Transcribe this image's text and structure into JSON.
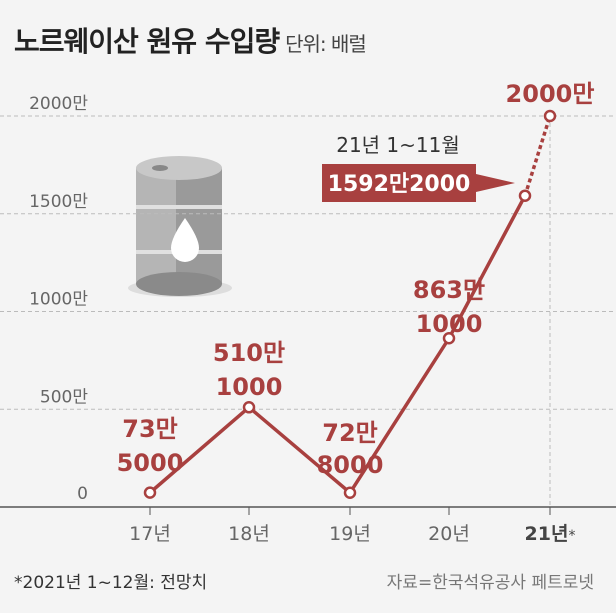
{
  "header": {
    "title": "노르웨이산 원유 수입량",
    "unit": "단위: 배럴"
  },
  "footer": {
    "note": "*2021년 1~12월: 전망치",
    "source": "자료=한국석유공사 페트로넷"
  },
  "colors": {
    "accent": "#a8403f",
    "axis": "#555555",
    "grid": "#bbbbbb"
  },
  "chart_data": {
    "type": "line",
    "title": "노르웨이산 원유 수입량",
    "ylabel": "단위: 배럴",
    "ylim": [
      0,
      20000000
    ],
    "yticks": [
      0,
      5000000,
      10000000,
      15000000,
      20000000
    ],
    "ytick_labels": [
      "0",
      "500만",
      "1000만",
      "1500만",
      "2000만"
    ],
    "categories": [
      "17년",
      "18년",
      "19년",
      "20년",
      "21년"
    ],
    "x_suffix_last": "*",
    "values": [
      735000,
      5101000,
      728000,
      8631000,
      20000000
    ],
    "partial": {
      "label": "21년 1~11월",
      "value": 15922000,
      "value_label": "1592만2000"
    },
    "data_labels": [
      [
        "73만",
        "5000"
      ],
      [
        "510만",
        "1000"
      ],
      [
        "72만",
        "8000"
      ],
      [
        "863만",
        "1000"
      ],
      [
        "2000만"
      ]
    ],
    "grid": true,
    "icon": "oil-barrel-icon"
  }
}
